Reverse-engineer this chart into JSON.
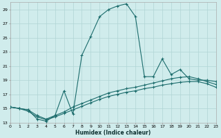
{
  "xlabel": "Humidex (Indice chaleur)",
  "bg_color": "#d0ecec",
  "grid_color": "#b0d4d4",
  "line_color": "#1a6b6b",
  "line1_x": [
    0,
    1,
    2,
    3,
    4,
    5,
    6,
    7,
    8,
    9,
    10,
    11,
    12,
    13,
    14,
    15,
    16,
    17,
    18,
    19,
    20,
    21,
    22,
    23
  ],
  "line1_y": [
    15.2,
    15.0,
    14.8,
    13.5,
    13.2,
    14.0,
    17.5,
    14.2,
    22.5,
    25.2,
    28.0,
    29.0,
    29.5,
    29.8,
    28.0,
    19.5,
    19.5,
    22.0,
    19.8,
    20.5,
    19.2,
    19.0,
    19.0,
    18.8
  ],
  "line2_x": [
    0,
    1,
    2,
    3,
    4,
    5,
    6,
    7,
    8,
    9,
    10,
    11,
    12,
    13,
    14,
    15,
    16,
    17,
    18,
    19,
    20,
    21,
    22,
    23
  ],
  "line2_y": [
    15.2,
    15.0,
    14.8,
    14.0,
    13.5,
    14.0,
    14.5,
    15.2,
    15.7,
    16.2,
    16.7,
    17.2,
    17.5,
    17.8,
    18.0,
    18.3,
    18.6,
    18.9,
    19.2,
    19.4,
    19.5,
    19.2,
    18.8,
    18.4
  ],
  "line3_x": [
    0,
    1,
    2,
    3,
    4,
    5,
    6,
    7,
    8,
    9,
    10,
    11,
    12,
    13,
    14,
    15,
    16,
    17,
    18,
    19,
    20,
    21,
    22,
    23
  ],
  "line3_y": [
    15.2,
    15.0,
    14.6,
    13.8,
    13.4,
    13.8,
    14.3,
    14.8,
    15.3,
    15.8,
    16.3,
    16.7,
    17.0,
    17.3,
    17.5,
    17.8,
    18.0,
    18.3,
    18.5,
    18.7,
    18.8,
    18.8,
    18.5,
    18.0
  ],
  "ylim": [
    13,
    30
  ],
  "xlim": [
    0,
    23
  ],
  "yticks": [
    13,
    15,
    17,
    19,
    21,
    23,
    25,
    27,
    29
  ],
  "xticks": [
    0,
    1,
    2,
    3,
    4,
    5,
    6,
    7,
    8,
    9,
    10,
    11,
    12,
    13,
    14,
    15,
    16,
    17,
    18,
    19,
    20,
    21,
    22,
    23
  ],
  "xtick_labels": [
    "0",
    "1",
    "2",
    "3",
    "4",
    "5",
    "6",
    "7",
    "8",
    "9",
    "10",
    "11",
    "12",
    "13",
    "14",
    "15",
    "16",
    "17",
    "18",
    "19",
    "20",
    "21",
    "22",
    "23"
  ],
  "xlabel_fontsize": 5.5,
  "tick_fontsize": 4.5
}
